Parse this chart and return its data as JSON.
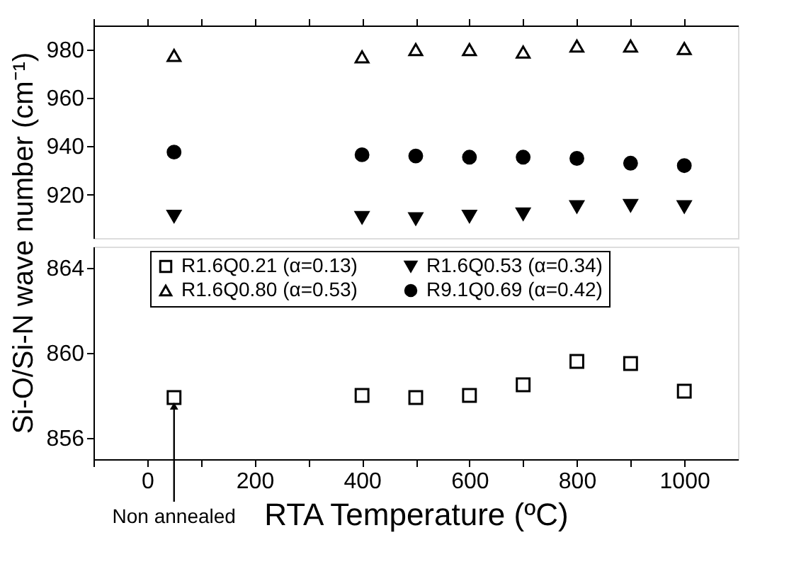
{
  "chart_data": [
    {
      "type": "scatter",
      "ylabel": "Si-O/Si-N wave number (cm⁻¹)",
      "xlim": [
        -100,
        1100
      ],
      "xticks": [
        {
          "value": -100,
          "label": null
        },
        {
          "value": 0,
          "label": null
        },
        {
          "value": 100,
          "label": null
        },
        {
          "value": 200,
          "label": null
        },
        {
          "value": 300,
          "label": null
        },
        {
          "value": 400,
          "label": null
        },
        {
          "value": 500,
          "label": null
        },
        {
          "value": 600,
          "label": null
        },
        {
          "value": 700,
          "label": null
        },
        {
          "value": 800,
          "label": null
        },
        {
          "value": 900,
          "label": null
        },
        {
          "value": 1000,
          "label": null
        }
      ],
      "ylim": [
        902,
        990
      ],
      "yticks": [
        920,
        940,
        960,
        980
      ],
      "tick_labels": "y",
      "grid": false,
      "legend": "bottom",
      "x": [
        50,
        400,
        500,
        600,
        700,
        800,
        900,
        1000
      ],
      "series": [
        {
          "name": "R1.6Q0.80 (α=0.53)",
          "color": "#000000",
          "marker": "triangle",
          "values": [
            977.6,
            977,
            980,
            980,
            979,
            981.5,
            981.5,
            980.5
          ]
        },
        {
          "name": "R1.6Q0.53 (α=0.34)",
          "color": "#000000",
          "marker": "triangle-down",
          "values": [
            911,
            910.5,
            910,
            911,
            912,
            915,
            915.5,
            915
          ]
        },
        {
          "name": "R9.1Q0.69 (α=0.42)",
          "color": "#000000",
          "marker": "circle",
          "values": [
            937.6,
            936.5,
            936,
            935.5,
            935.5,
            935,
            933,
            932
          ]
        }
      ]
    },
    {
      "type": "scatter",
      "xlabel": "RTA Temperature  (ºC)",
      "xlim": [
        -100,
        1100
      ],
      "xticks": [
        {
          "value": -100,
          "label": null
        },
        0,
        {
          "value": 100,
          "label": null
        },
        200,
        {
          "value": 300,
          "label": null
        },
        400,
        {
          "value": 500,
          "label": null
        },
        600,
        {
          "value": 700,
          "label": null
        },
        800,
        {
          "value": 900,
          "label": null
        },
        1000
      ],
      "ylim": [
        855,
        865
      ],
      "yticks": [
        856,
        860,
        864
      ],
      "grid": false,
      "legend": "top",
      "annotations": [
        {
          "text": "Non annealed",
          "x": 50,
          "y": 857.5
        }
      ],
      "x": [
        50,
        400,
        500,
        600,
        700,
        800,
        900,
        1000
      ],
      "series": [
        {
          "name": "R1.6Q0.21 (α=0.13)",
          "color": "#000000",
          "marker": "square",
          "values": [
            857.9,
            858.0,
            857.9,
            858.0,
            858.5,
            859.6,
            859.5,
            858.2
          ]
        }
      ]
    }
  ]
}
